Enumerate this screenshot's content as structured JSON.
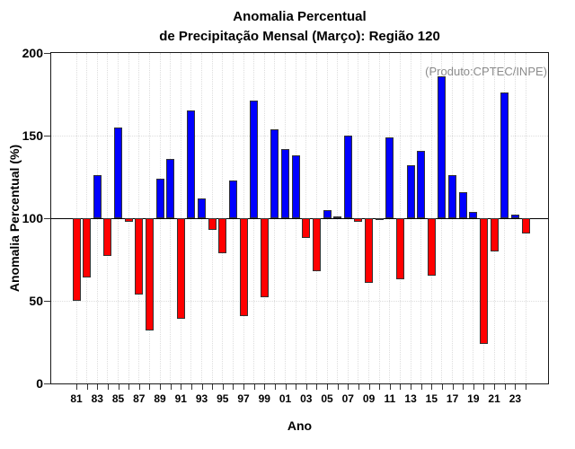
{
  "title": {
    "line1": "Anomalia Percentual",
    "line2": "de Precipitação Mensal (Março): Região 120"
  },
  "watermark": "(Produto:CPTEC/INPE)",
  "chart_data": {
    "type": "bar",
    "title": "Anomalia Percentual de Precipitação Mensal (Março): Região 120",
    "xlabel": "Ano",
    "ylabel": "Anomalia Percentual (%)",
    "ylim": [
      0,
      200
    ],
    "yticks": [
      0,
      50,
      100,
      150,
      200
    ],
    "baseline": 100,
    "grid": "dotted vertical line per year; dotted horizontal at 50 and 150; solid black line at 100",
    "legend": "none",
    "colors": {
      "above": "#0000ff",
      "below": "#ff0000",
      "outline": "#333333"
    },
    "x_tick_labels": [
      "81",
      "83",
      "85",
      "87",
      "89",
      "91",
      "93",
      "95",
      "97",
      "99",
      "01",
      "03",
      "05",
      "07",
      "09",
      "11",
      "13",
      "15",
      "17",
      "19",
      "21",
      "23"
    ],
    "x": [
      "81",
      "82",
      "83",
      "84",
      "85",
      "86",
      "87",
      "88",
      "89",
      "90",
      "91",
      "92",
      "93",
      "94",
      "95",
      "96",
      "97",
      "98",
      "99",
      "00",
      "01",
      "02",
      "03",
      "04",
      "05",
      "06",
      "07",
      "08",
      "09",
      "10",
      "11",
      "12",
      "13",
      "14",
      "15",
      "16",
      "17",
      "18",
      "19",
      "20",
      "21",
      "22",
      "23",
      "24"
    ],
    "values": [
      50,
      64,
      126,
      77,
      155,
      98,
      54,
      32,
      124,
      136,
      39,
      165,
      112,
      93,
      79,
      123,
      41,
      171,
      52,
      154,
      142,
      138,
      88,
      68,
      105,
      101,
      150,
      98,
      61,
      99,
      149,
      63,
      132,
      141,
      65,
      186,
      126,
      116,
      104,
      24,
      80,
      176,
      102,
      91
    ]
  }
}
